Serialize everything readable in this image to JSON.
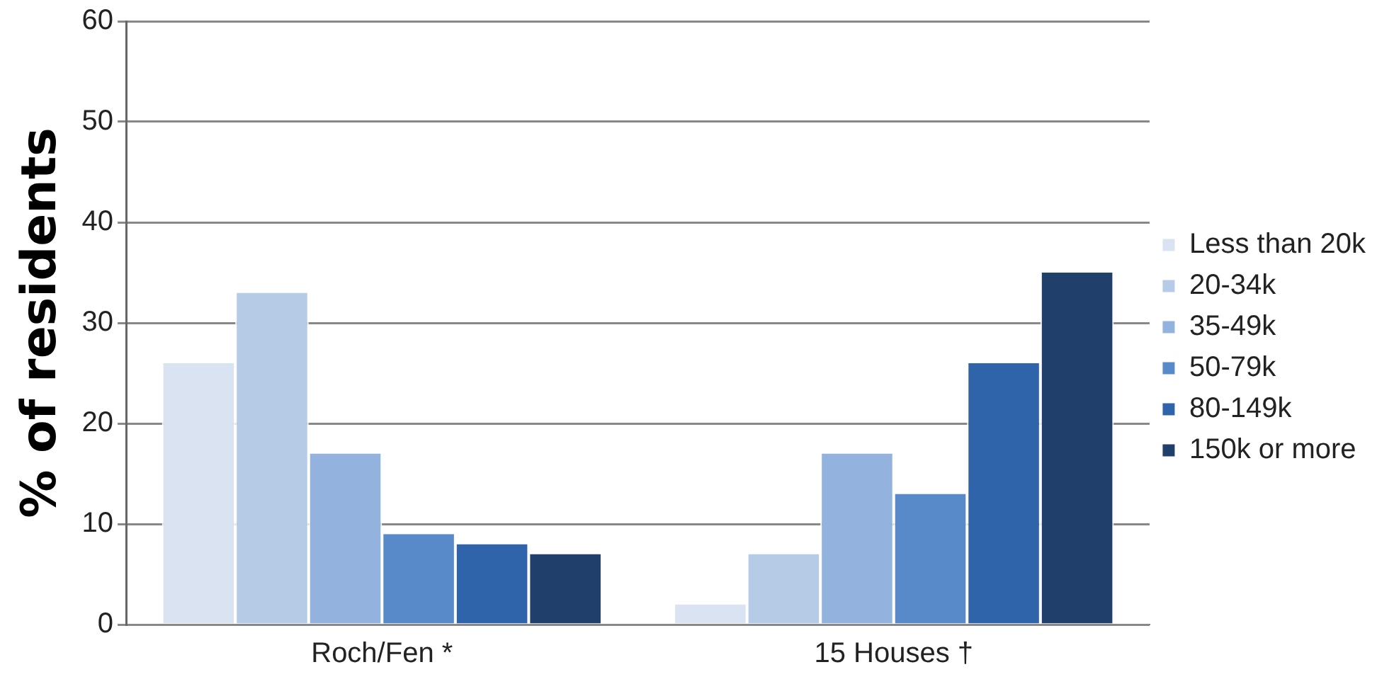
{
  "chart_data": {
    "type": "bar",
    "ylabel": "% of residents",
    "categories": [
      "Roch/Fen *",
      "15 Houses †"
    ],
    "series": [
      {
        "name": "Less than 20k",
        "color": "#d9e3f2",
        "values": [
          26,
          2
        ]
      },
      {
        "name": "20-34k",
        "color": "#b6cbe6",
        "values": [
          33,
          7
        ]
      },
      {
        "name": "35-49k",
        "color": "#93b3de",
        "values": [
          17,
          17
        ]
      },
      {
        "name": "50-79k",
        "color": "#5889c8",
        "values": [
          9,
          13
        ]
      },
      {
        "name": "80-149k",
        "color": "#2f64ab",
        "values": [
          8,
          26
        ]
      },
      {
        "name": "150k or more",
        "color": "#213f6b",
        "values": [
          7,
          35
        ]
      }
    ],
    "ylim": [
      0,
      60
    ],
    "yticks": [
      0,
      10,
      20,
      30,
      40,
      50,
      60
    ],
    "grid": "y",
    "legend": "right"
  }
}
